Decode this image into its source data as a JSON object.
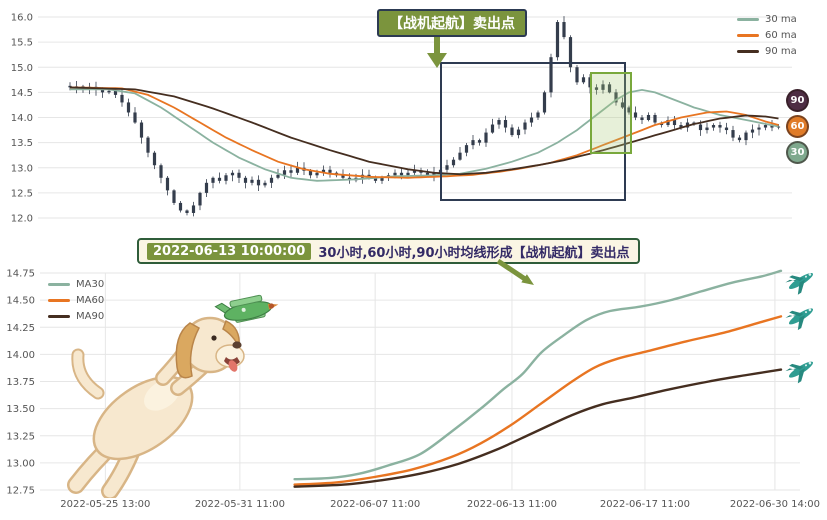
{
  "accent_colors": {
    "olive": "#7b943d",
    "navy_border": "#2c3a52",
    "green_box_border": "#79a83c",
    "banner_bg": "#faf5e4",
    "banner_border": "#2f5d3a",
    "banner_text": "#332a66",
    "plane_teal": "#2f9d92",
    "candle": "#343d4c",
    "grid": "#e6e6e6"
  },
  "mid_banner": {
    "date": "2022-06-13 10:00:00",
    "text": "30小时,60小时,90小时均线形成【战机起航】卖出点"
  },
  "icons": [
    "down-arrow-icon",
    "diagonal-arrow-icon",
    "airplane-icon",
    "dog-with-toy-plane-illustration"
  ],
  "chart_data": [
    {
      "id": "top",
      "type": "candlestick+line",
      "annotation": "【战机起航】卖出点",
      "ylim": [
        12.0,
        16.0
      ],
      "grid": true,
      "legend_position": "top-right",
      "y_ticks": [
        "16.0",
        "15.5",
        "15.0",
        "14.5",
        "14.0",
        "13.5",
        "13.0",
        "12.5",
        "12.0"
      ],
      "legend": [
        {
          "label": "30 ma",
          "color": "#8bb2a0"
        },
        {
          "label": "60 ma",
          "color": "#e87522"
        },
        {
          "label": "90 ma",
          "color": "#452e20"
        }
      ],
      "badges": [
        {
          "label": "90",
          "color": "#4e2d44"
        },
        {
          "label": "60",
          "color": "#e07b28"
        },
        {
          "label": "30",
          "color": "#7fa98e"
        }
      ],
      "candle_closes": [
        14.6,
        14.62,
        14.58,
        14.61,
        14.55,
        14.5,
        14.53,
        14.45,
        14.3,
        14.1,
        13.9,
        13.6,
        13.3,
        13.05,
        12.8,
        12.55,
        12.3,
        12.15,
        12.1,
        12.25,
        12.5,
        12.7,
        12.8,
        12.74,
        12.85,
        12.9,
        12.8,
        12.7,
        12.76,
        12.65,
        12.7,
        12.8,
        12.86,
        12.95,
        12.9,
        13.0,
        12.94,
        12.85,
        12.9,
        12.96,
        12.9,
        12.85,
        12.8,
        12.75,
        12.8,
        12.86,
        12.8,
        12.74,
        12.8,
        12.85,
        12.9,
        12.85,
        12.9,
        12.95,
        12.9,
        12.85,
        12.9,
        12.96,
        13.05,
        13.16,
        13.3,
        13.45,
        13.55,
        13.5,
        13.7,
        13.86,
        13.95,
        13.8,
        13.65,
        13.76,
        13.9,
        14.0,
        14.1,
        14.5,
        15.2,
        15.9,
        15.6,
        15.0,
        14.7,
        14.8,
        14.6,
        14.55,
        14.66,
        14.5,
        14.3,
        14.2,
        14.1,
        14.0,
        13.95,
        14.05,
        13.9,
        13.85,
        13.95,
        13.85,
        13.8,
        13.9,
        13.86,
        13.75,
        13.8,
        13.85,
        13.8,
        13.75,
        13.6,
        13.55,
        13.7,
        13.76,
        13.8,
        13.85,
        13.8,
        13.82
      ],
      "ma_series": [
        {
          "name": "30 ma",
          "color": "#8bb2a0",
          "points": [
            [
              0,
              14.56
            ],
            [
              6,
              14.56
            ],
            [
              10,
              14.48
            ],
            [
              14,
              14.2
            ],
            [
              18,
              13.85
            ],
            [
              22,
              13.5
            ],
            [
              26,
              13.2
            ],
            [
              30,
              12.97
            ],
            [
              34,
              12.8
            ],
            [
              38,
              12.74
            ],
            [
              44,
              12.77
            ],
            [
              50,
              12.83
            ],
            [
              56,
              12.85
            ],
            [
              60,
              12.88
            ],
            [
              64,
              12.98
            ],
            [
              68,
              13.12
            ],
            [
              72,
              13.3
            ],
            [
              75,
              13.5
            ],
            [
              78,
              13.75
            ],
            [
              81,
              14.05
            ],
            [
              84,
              14.35
            ],
            [
              86,
              14.5
            ],
            [
              88,
              14.55
            ],
            [
              90,
              14.5
            ],
            [
              93,
              14.35
            ],
            [
              96,
              14.2
            ],
            [
              100,
              14.05
            ],
            [
              104,
              13.95
            ],
            [
              109,
              13.82
            ]
          ]
        },
        {
          "name": "60 ma",
          "color": "#e87522",
          "points": [
            [
              0,
              14.6
            ],
            [
              8,
              14.58
            ],
            [
              12,
              14.45
            ],
            [
              16,
              14.2
            ],
            [
              20,
              13.9
            ],
            [
              24,
              13.6
            ],
            [
              28,
              13.35
            ],
            [
              32,
              13.12
            ],
            [
              36,
              12.97
            ],
            [
              40,
              12.88
            ],
            [
              46,
              12.82
            ],
            [
              52,
              12.8
            ],
            [
              58,
              12.83
            ],
            [
              62,
              12.86
            ],
            [
              66,
              12.92
            ],
            [
              70,
              13.0
            ],
            [
              74,
              13.1
            ],
            [
              78,
              13.25
            ],
            [
              82,
              13.45
            ],
            [
              86,
              13.65
            ],
            [
              90,
              13.85
            ],
            [
              94,
              14.0
            ],
            [
              98,
              14.1
            ],
            [
              101,
              14.12
            ],
            [
              104,
              14.05
            ],
            [
              107,
              13.92
            ],
            [
              109,
              13.85
            ]
          ]
        },
        {
          "name": "90 ma",
          "color": "#452e20",
          "points": [
            [
              0,
              14.6
            ],
            [
              10,
              14.56
            ],
            [
              16,
              14.42
            ],
            [
              22,
              14.18
            ],
            [
              28,
              13.9
            ],
            [
              34,
              13.6
            ],
            [
              40,
              13.35
            ],
            [
              46,
              13.12
            ],
            [
              52,
              12.97
            ],
            [
              56,
              12.9
            ],
            [
              60,
              12.87
            ],
            [
              64,
              12.9
            ],
            [
              68,
              12.97
            ],
            [
              72,
              13.05
            ],
            [
              76,
              13.15
            ],
            [
              80,
              13.28
            ],
            [
              84,
              13.42
            ],
            [
              88,
              13.57
            ],
            [
              92,
              13.72
            ],
            [
              96,
              13.87
            ],
            [
              100,
              13.98
            ],
            [
              104,
              14.04
            ],
            [
              107,
              14.02
            ],
            [
              109,
              13.98
            ]
          ]
        }
      ]
    },
    {
      "id": "bottom",
      "type": "line",
      "ylim": [
        12.75,
        14.75
      ],
      "grid": true,
      "legend_position": "top-left",
      "y_ticks": [
        "14.75",
        "14.50",
        "14.25",
        "14.00",
        "13.75",
        "13.50",
        "13.25",
        "13.00",
        "12.75"
      ],
      "x_ticks": [
        {
          "label": "2022-05-25 13:00",
          "pos": 0.086
        },
        {
          "label": "2022-05-31 11:00",
          "pos": 0.263
        },
        {
          "label": "2022-06-07 11:00",
          "pos": 0.441
        },
        {
          "label": "2022-06-13 11:00",
          "pos": 0.621
        },
        {
          "label": "2022-06-17 11:00",
          "pos": 0.796
        },
        {
          "label": "2022-06-30 14:00",
          "pos": 0.967
        }
      ],
      "series": [
        {
          "name": "MA30",
          "color": "#8bb2a0",
          "points": [
            [
              0.335,
              12.85
            ],
            [
              0.38,
              12.86
            ],
            [
              0.42,
              12.9
            ],
            [
              0.46,
              12.98
            ],
            [
              0.5,
              13.08
            ],
            [
              0.54,
              13.28
            ],
            [
              0.58,
              13.5
            ],
            [
              0.61,
              13.68
            ],
            [
              0.635,
              13.82
            ],
            [
              0.66,
              14.02
            ],
            [
              0.69,
              14.18
            ],
            [
              0.72,
              14.32
            ],
            [
              0.75,
              14.4
            ],
            [
              0.79,
              14.44
            ],
            [
              0.83,
              14.5
            ],
            [
              0.87,
              14.58
            ],
            [
              0.91,
              14.66
            ],
            [
              0.95,
              14.72
            ],
            [
              0.975,
              14.77
            ]
          ]
        },
        {
          "name": "MA60",
          "color": "#e87522",
          "points": [
            [
              0.335,
              12.8
            ],
            [
              0.39,
              12.82
            ],
            [
              0.44,
              12.87
            ],
            [
              0.49,
              12.94
            ],
            [
              0.54,
              13.05
            ],
            [
              0.58,
              13.18
            ],
            [
              0.62,
              13.35
            ],
            [
              0.66,
              13.55
            ],
            [
              0.7,
              13.75
            ],
            [
              0.73,
              13.88
            ],
            [
              0.76,
              13.96
            ],
            [
              0.8,
              14.03
            ],
            [
              0.85,
              14.12
            ],
            [
              0.9,
              14.2
            ],
            [
              0.95,
              14.3
            ],
            [
              0.975,
              14.35
            ]
          ]
        },
        {
          "name": "MA90",
          "color": "#452e20",
          "points": [
            [
              0.335,
              12.78
            ],
            [
              0.4,
              12.8
            ],
            [
              0.45,
              12.84
            ],
            [
              0.5,
              12.9
            ],
            [
              0.55,
              12.99
            ],
            [
              0.6,
              13.12
            ],
            [
              0.65,
              13.28
            ],
            [
              0.7,
              13.44
            ],
            [
              0.74,
              13.54
            ],
            [
              0.78,
              13.6
            ],
            [
              0.83,
              13.68
            ],
            [
              0.88,
              13.75
            ],
            [
              0.93,
              13.81
            ],
            [
              0.975,
              13.86
            ]
          ]
        }
      ]
    }
  ]
}
